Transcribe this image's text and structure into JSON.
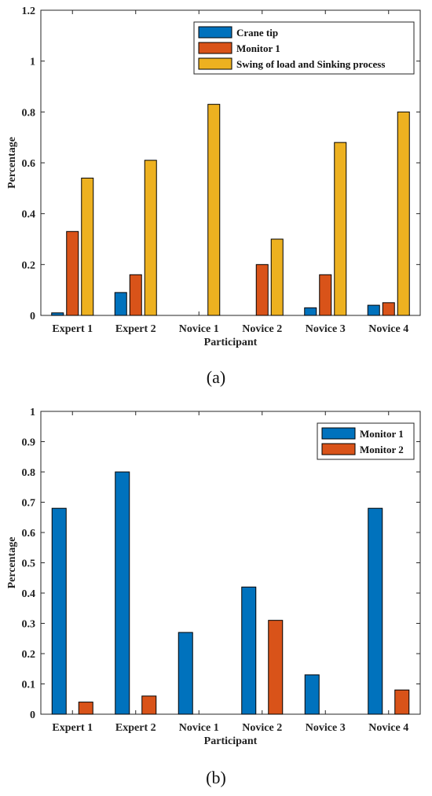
{
  "chart_data": [
    {
      "type": "bar",
      "caption": "(a)",
      "categories": [
        "Expert 1",
        "Expert 2",
        "Novice 1",
        "Novice 2",
        "Novice 3",
        "Novice 4"
      ],
      "series": [
        {
          "name": "Crane tip",
          "color": "#0072BD",
          "values": [
            0.01,
            0.09,
            0,
            0,
            0.03,
            0.04
          ]
        },
        {
          "name": "Monitor 1",
          "color": "#D95319",
          "values": [
            0.33,
            0.16,
            0,
            0.2,
            0.16,
            0.05
          ]
        },
        {
          "name": "Swing of load and Sinking process",
          "color": "#EDB120",
          "values": [
            0.54,
            0.61,
            0.83,
            0.3,
            0.68,
            0.8
          ]
        }
      ],
      "xlabel": "Participant",
      "ylabel": "Percentage",
      "ylim": [
        0,
        1.2
      ],
      "yticks": [
        "0",
        "0.2",
        "0.4",
        "0.6",
        "0.8",
        "1",
        "1.2"
      ],
      "legend": "top-right",
      "grid": false
    },
    {
      "type": "bar",
      "caption": "(b)",
      "categories": [
        "Expert 1",
        "Expert 2",
        "Novice 1",
        "Novice 2",
        "Novice 3",
        "Novice 4"
      ],
      "series": [
        {
          "name": "Monitor 1",
          "color": "#0072BD",
          "values": [
            0.68,
            0.8,
            0.27,
            0.42,
            0.13,
            0.68
          ]
        },
        {
          "name": "Monitor 2",
          "color": "#D95319",
          "values": [
            0.04,
            0.06,
            0,
            0.31,
            0,
            0.08
          ]
        }
      ],
      "xlabel": "Participant",
      "ylabel": "Percentage",
      "ylim": [
        0,
        1
      ],
      "yticks": [
        "0",
        "0.1",
        "0.2",
        "0.3",
        "0.4",
        "0.5",
        "0.6",
        "0.7",
        "0.8",
        "0.9",
        "1"
      ],
      "legend": "top-right",
      "grid": false
    }
  ]
}
